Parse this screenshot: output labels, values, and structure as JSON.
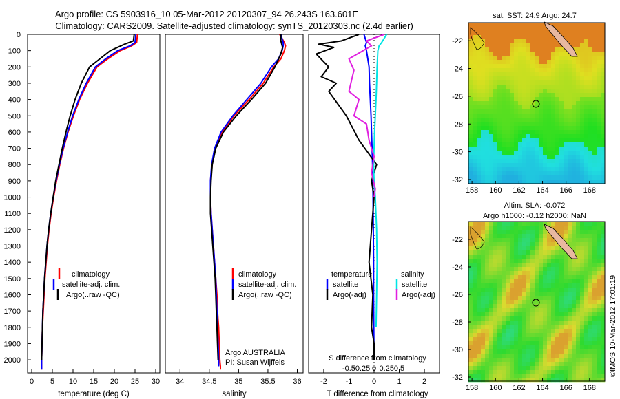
{
  "header": {
    "title_line1": "Argo profile: CS 5903916_10 05-Mar-2012 20120307_94 26.243S 163.601E",
    "title_line2": "Climatology: CARS2009. Satellite-adjusted climatology: synTS_20120303.nc (2.4d earlier)"
  },
  "colors": {
    "climatology": "#ff0000",
    "satellite": "#0000ff",
    "argo": "#000000",
    "satellite_salinity": "#00e5e5",
    "argo_salinity": "#e020e0",
    "land": "#e8b8a0"
  },
  "depth_ticks": [
    "0",
    "100",
    "200",
    "300",
    "400",
    "500",
    "600",
    "700",
    "800",
    "900",
    "1000",
    "1100",
    "1200",
    "1300",
    "1400",
    "1500",
    "1600",
    "1700",
    "1800",
    "1900",
    "2000"
  ],
  "panel_temp": {
    "xlabel": "temperature (deg C)",
    "x_ticks": [
      "0",
      "5",
      "10",
      "15",
      "20",
      "25",
      "30"
    ],
    "legend": [
      "climatology",
      "satellite-adj. clim.",
      "Argo(..raw -QC)"
    ]
  },
  "panel_sal": {
    "xlabel": "salinity",
    "x_ticks": [
      "34",
      "34.5",
      "35",
      "35.5",
      "36"
    ],
    "legend": [
      "climatology",
      "satellite-adj. clim.",
      "Argo(..raw -QC)"
    ],
    "credit_line1": "Argo AUSTRALIA",
    "credit_line2": "PI: Susan Wijffels"
  },
  "panel_diff": {
    "top_ticks_label": "S difference from climatology",
    "top_ticks": [
      "-0.5",
      "-0.25",
      "0",
      "0.25",
      "0.5"
    ],
    "xlabel": "T difference from climatology",
    "x_ticks": [
      "-2",
      "-1",
      "0",
      "1",
      "2"
    ],
    "legend_temp_title": "temperature",
    "legend_sal_title": "salinity",
    "legend_temp": [
      "satellite",
      "Argo(-adj)"
    ],
    "legend_sal": [
      "satellite",
      "Argo(-adj)"
    ]
  },
  "map_sst": {
    "title": "sat. SST: 24.9 Argo: 24.7",
    "lat_ticks": [
      "-22",
      "-24",
      "-26",
      "-28",
      "-30",
      "-32"
    ],
    "lon_ticks": [
      "158",
      "160",
      "162",
      "164",
      "166",
      "168"
    ]
  },
  "map_sla": {
    "title_line1": "Altim. SLA: -0.072",
    "title_line2": "Argo h1000: -0.12 h2000: NaN",
    "lat_ticks": [
      "-22",
      "-24",
      "-26",
      "-28",
      "-30",
      "-32"
    ],
    "lon_ticks": [
      "158",
      "160",
      "162",
      "164",
      "166",
      "168"
    ]
  },
  "footer_stamp": "©IMOS 10-Mar-2012 17:01:19",
  "chart_data": [
    {
      "type": "line",
      "name": "temperature profile",
      "xlabel": "temperature (deg C)",
      "ylabel": "",
      "xlim": [
        -1,
        31
      ],
      "ylim": [
        2080,
        0
      ],
      "series": [
        {
          "name": "climatology",
          "x": [
            25.6,
            25.4,
            24.2,
            21.4,
            18.4,
            15.8,
            13.5,
            11.6,
            10.1,
            8.8,
            7.7,
            6.8,
            6.0,
            5.3,
            4.7,
            4.2,
            3.8,
            3.5,
            3.2,
            3.0,
            2.8,
            2.6,
            2.5,
            2.4,
            2.4
          ],
          "y": [
            0,
            50,
            70,
            100,
            150,
            200,
            300,
            400,
            500,
            600,
            700,
            800,
            900,
            1000,
            1100,
            1200,
            1300,
            1400,
            1500,
            1600,
            1700,
            1800,
            1900,
            2000,
            2060
          ]
        },
        {
          "name": "satellite-adj. clim.",
          "x": [
            25.2,
            25.0,
            23.8,
            20.8,
            17.9,
            15.4,
            13.2,
            11.4,
            9.9,
            8.7,
            7.6,
            6.7,
            5.9,
            5.2,
            4.6,
            4.1,
            3.7,
            3.4,
            3.1,
            2.9,
            2.7,
            2.6,
            2.5,
            2.4,
            2.4
          ],
          "y": [
            0,
            50,
            70,
            100,
            150,
            200,
            300,
            400,
            500,
            600,
            700,
            800,
            900,
            1000,
            1100,
            1200,
            1300,
            1400,
            1500,
            1600,
            1700,
            1800,
            1900,
            2000,
            2060
          ]
        },
        {
          "name": "Argo(..raw -QC)",
          "x": [
            24.8,
            24.6,
            22.5,
            19.0,
            16.5,
            14.0,
            12.0,
            10.5,
            9.3,
            8.3,
            7.4,
            6.6,
            5.8,
            5.2,
            4.6,
            4.1,
            3.7,
            3.4,
            3.1,
            2.9,
            2.7,
            2.6,
            2.5,
            2.4
          ],
          "y": [
            0,
            40,
            60,
            100,
            150,
            200,
            300,
            400,
            500,
            600,
            700,
            800,
            900,
            1000,
            1100,
            1200,
            1300,
            1400,
            1500,
            1600,
            1700,
            1800,
            1900,
            2000
          ]
        }
      ]
    },
    {
      "type": "line",
      "name": "salinity profile",
      "xlabel": "salinity",
      "ylabel": "",
      "xlim": [
        33.75,
        36.1
      ],
      "ylim": [
        2080,
        0
      ],
      "series": [
        {
          "name": "climatology",
          "x": [
            35.7,
            35.78,
            35.8,
            35.78,
            35.72,
            35.6,
            35.42,
            35.18,
            34.92,
            34.72,
            34.6,
            34.55,
            34.52,
            34.52,
            34.53,
            34.55,
            34.57,
            34.59,
            34.61,
            34.63,
            34.64,
            34.66,
            34.67,
            34.68,
            34.69,
            34.69
          ],
          "y": [
            0,
            50,
            70,
            100,
            150,
            200,
            300,
            400,
            500,
            600,
            700,
            800,
            900,
            1000,
            1100,
            1200,
            1300,
            1400,
            1500,
            1600,
            1700,
            1800,
            1900,
            2000,
            2040,
            2060
          ]
        },
        {
          "name": "satellite-adj. clim.",
          "x": [
            35.72,
            35.76,
            35.76,
            35.74,
            35.68,
            35.56,
            35.38,
            35.14,
            34.9,
            34.7,
            34.59,
            34.54,
            34.52,
            34.52,
            34.53,
            34.55,
            34.57,
            34.59,
            34.61,
            34.62,
            34.63,
            34.64,
            34.65,
            34.66,
            34.66
          ],
          "y": [
            0,
            50,
            70,
            100,
            150,
            200,
            300,
            400,
            500,
            600,
            700,
            800,
            900,
            1000,
            1100,
            1200,
            1300,
            1400,
            1500,
            1600,
            1700,
            1800,
            1900,
            2000,
            2040
          ]
        },
        {
          "name": "Argo(..raw -QC)",
          "x": [
            35.72,
            35.72,
            35.75,
            35.72,
            35.62,
            35.46,
            35.22,
            34.96,
            34.74,
            34.61,
            34.55,
            34.53,
            34.52,
            34.52,
            34.54,
            34.56,
            34.58,
            34.6,
            34.61,
            34.62,
            34.63,
            34.64,
            34.65
          ],
          "y": [
            0,
            40,
            80,
            120,
            200,
            300,
            400,
            500,
            600,
            700,
            800,
            900,
            1000,
            1100,
            1200,
            1300,
            1400,
            1500,
            1600,
            1700,
            1800,
            1900,
            2000
          ]
        }
      ]
    },
    {
      "type": "line",
      "name": "difference from climatology",
      "xlabel": "T difference from climatology",
      "ylabel": "",
      "xlim": [
        -2.6,
        2.6
      ],
      "ylim": [
        2080,
        0
      ],
      "series": [
        {
          "name": "temperature satellite",
          "x": [
            -0.4,
            -0.3,
            -0.35,
            -0.3,
            -0.25,
            -0.2,
            -0.18,
            -0.15,
            -0.12,
            -0.1,
            -0.08,
            -0.06,
            -0.05,
            -0.04,
            -0.03,
            -0.02,
            -0.02,
            -0.01,
            0.0
          ],
          "y": [
            0,
            50,
            70,
            100,
            150,
            200,
            300,
            400,
            500,
            600,
            700,
            800,
            900,
            1000,
            1200,
            1400,
            1600,
            1800,
            2000
          ]
        },
        {
          "name": "temperature Argo(-adj)",
          "x": [
            -0.6,
            -1.3,
            -2.2,
            -1.6,
            -2.3,
            -1.8,
            -2.1,
            -1.5,
            -1.8,
            -1.1,
            -0.6,
            0.1,
            -0.1,
            0.0,
            -0.1,
            -0.2,
            -0.05,
            -0.1,
            0.0,
            0.0
          ],
          "y": [
            0,
            40,
            60,
            80,
            120,
            200,
            260,
            300,
            350,
            500,
            650,
            800,
            900,
            1000,
            1200,
            1400,
            1600,
            1800,
            1900,
            2000
          ]
        },
        {
          "name": "salinity satellite",
          "x": [
            0.5,
            0.3,
            0.2,
            0.15,
            0.12,
            0.1,
            0.08,
            0.05,
            0.02,
            0.0,
            -0.02,
            0.0,
            0.05,
            0.1,
            0.12,
            0.1,
            0.08
          ],
          "y": [
            0,
            50,
            70,
            100,
            200,
            300,
            400,
            500,
            600,
            700,
            800,
            900,
            1000,
            1200,
            1400,
            1600,
            1800
          ]
        },
        {
          "name": "salinity Argo(-adj)",
          "x": [
            0.4,
            -0.3,
            -0.1,
            -1.0,
            -0.8,
            -1.0,
            -0.6,
            -0.8,
            -0.3,
            -0.2,
            0.0,
            -0.1,
            0.05,
            0.0
          ],
          "y": [
            0,
            40,
            70,
            150,
            220,
            350,
            400,
            500,
            550,
            650,
            750,
            850,
            950,
            1000
          ]
        }
      ]
    }
  ]
}
